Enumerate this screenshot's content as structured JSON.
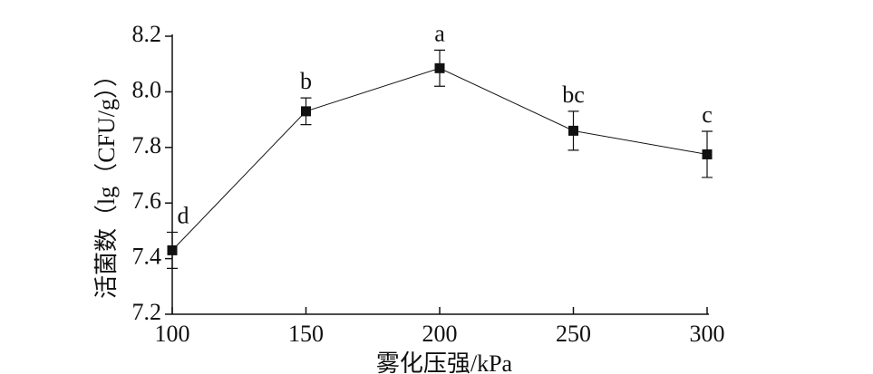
{
  "chart_data": {
    "type": "line",
    "x_label": "雾化压强/kPa",
    "y_label": "活菌数（lg（CFU/g））",
    "x": [
      100,
      150,
      200,
      250,
      300
    ],
    "series": [
      {
        "color": "#111111",
        "values": [
          7.43,
          7.93,
          8.085,
          7.86,
          7.775
        ],
        "errors": [
          0.065,
          0.048,
          0.065,
          0.07,
          0.083
        ],
        "labels": [
          "d",
          "b",
          "a",
          "bc",
          "c"
        ]
      }
    ],
    "xlim": [
      100,
      300
    ],
    "xticks": [
      100,
      150,
      200,
      250,
      300
    ],
    "ylim": [
      7.2,
      8.2
    ],
    "yticks": [
      7.2,
      7.4,
      7.6,
      7.8,
      {
        "value": 8,
        "label": "8.0"
      },
      8.2
    ]
  }
}
